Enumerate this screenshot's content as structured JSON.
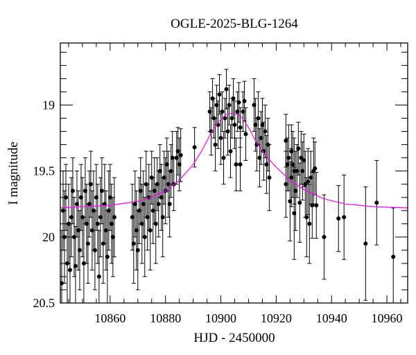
{
  "chart_data": {
    "type": "scatter",
    "title": "OGLE-2025-BLG-1264",
    "xlabel": "HJD - 2450000",
    "ylabel": "I magnitude",
    "xlim": [
      10842,
      10967.5
    ],
    "ylim": [
      20.5,
      18.53
    ],
    "y_inverted": true,
    "xticks": [
      10860,
      10880,
      10900,
      10920,
      10940,
      10960
    ],
    "xtick_labels": [
      "10860",
      "10880",
      "10900",
      "10920",
      "10940",
      "10960"
    ],
    "yticks": [
      19,
      19.5,
      20,
      20.5
    ],
    "ytick_labels": [
      "19",
      "19.5",
      "20",
      "20.5"
    ],
    "x_minor_step": 5,
    "y_minor_step": 0.1,
    "grid": false,
    "colors": {
      "points": "#000000",
      "model": "#ff00ff"
    },
    "points_columns": [
      "hjd",
      "mag",
      "err"
    ],
    "points": [
      [
        10842.5,
        20.35,
        0.4
      ],
      [
        10843,
        19.8,
        0.3
      ],
      [
        10843.5,
        20.0,
        0.35
      ],
      [
        10844,
        19.7,
        0.25
      ],
      [
        10844.5,
        20.2,
        0.3
      ],
      [
        10845,
        19.9,
        0.3
      ],
      [
        10845.5,
        20.25,
        0.35
      ],
      [
        10846,
        19.85,
        0.3
      ],
      [
        10846.5,
        19.65,
        0.25
      ],
      [
        10847,
        20.0,
        0.3
      ],
      [
        10847.5,
        20.22,
        0.3
      ],
      [
        10848,
        19.75,
        0.25
      ],
      [
        10848.5,
        19.95,
        0.3
      ],
      [
        10849,
        20.1,
        0.3
      ],
      [
        10849.5,
        19.7,
        0.25
      ],
      [
        10850,
        19.85,
        0.3
      ],
      [
        10850.5,
        20.2,
        0.35
      ],
      [
        10851,
        19.65,
        0.25
      ],
      [
        10851.5,
        19.9,
        0.3
      ],
      [
        10852,
        20.05,
        0.3
      ],
      [
        10852.5,
        19.75,
        0.25
      ],
      [
        10853,
        19.6,
        0.25
      ],
      [
        10853.5,
        19.95,
        0.3
      ],
      [
        10854,
        19.8,
        0.3
      ],
      [
        10854.5,
        20.1,
        0.3
      ],
      [
        10855,
        19.7,
        0.25
      ],
      [
        10855.5,
        19.9,
        0.3
      ],
      [
        10856,
        20.3,
        0.35
      ],
      [
        10856.5,
        19.85,
        0.3
      ],
      [
        10857,
        19.65,
        0.25
      ],
      [
        10857.5,
        20.05,
        0.3
      ],
      [
        10858,
        19.75,
        0.3
      ],
      [
        10858.5,
        19.95,
        0.3
      ],
      [
        10859,
        20.15,
        0.35
      ],
      [
        10859.5,
        19.8,
        0.3
      ],
      [
        10860,
        19.7,
        0.25
      ],
      [
        10860.5,
        19.9,
        0.3
      ],
      [
        10861,
        20.0,
        0.3
      ],
      [
        10861.5,
        19.85,
        0.3
      ],
      [
        10868,
        19.85,
        0.25
      ],
      [
        10868.5,
        20.05,
        0.3
      ],
      [
        10869,
        19.75,
        0.25
      ],
      [
        10869.5,
        19.95,
        0.3
      ],
      [
        10870,
        20.1,
        0.3
      ],
      [
        10870.5,
        19.8,
        0.25
      ],
      [
        10871,
        19.65,
        0.25
      ],
      [
        10871.5,
        19.9,
        0.3
      ],
      [
        10872,
        19.75,
        0.25
      ],
      [
        10872.5,
        20.0,
        0.3
      ],
      [
        10873,
        19.6,
        0.25
      ],
      [
        10873.5,
        19.85,
        0.25
      ],
      [
        10874,
        19.7,
        0.25
      ],
      [
        10874.5,
        19.95,
        0.3
      ],
      [
        10875,
        19.55,
        0.2
      ],
      [
        10875.5,
        19.8,
        0.25
      ],
      [
        10876,
        19.65,
        0.25
      ],
      [
        10876.5,
        19.9,
        0.3
      ],
      [
        10877,
        19.6,
        0.2
      ],
      [
        10877.5,
        19.75,
        0.25
      ],
      [
        10878,
        19.5,
        0.2
      ],
      [
        10878.5,
        19.7,
        0.25
      ],
      [
        10879,
        19.85,
        0.3
      ],
      [
        10879.5,
        19.55,
        0.2
      ],
      [
        10880,
        19.65,
        0.25
      ],
      [
        10880.5,
        19.45,
        0.2
      ],
      [
        10881,
        19.6,
        0.25
      ],
      [
        10881.5,
        19.75,
        0.25
      ],
      [
        10882,
        19.5,
        0.2
      ],
      [
        10882.5,
        19.4,
        0.2
      ],
      [
        10883,
        19.6,
        0.2
      ],
      [
        10884,
        19.4,
        0.2
      ],
      [
        10884.5,
        19.35,
        0.18
      ],
      [
        10885,
        19.45,
        0.2
      ],
      [
        10885.5,
        19.38,
        0.2
      ],
      [
        10890.5,
        19.32,
        0.15
      ],
      [
        10896,
        19.05,
        0.15
      ],
      [
        10896.5,
        19.2,
        0.18
      ],
      [
        10897,
        18.95,
        0.15
      ],
      [
        10897.5,
        19.1,
        0.15
      ],
      [
        10898,
        19.3,
        0.2
      ],
      [
        10898.5,
        19.0,
        0.15
      ],
      [
        10899,
        19.15,
        0.18
      ],
      [
        10899.5,
        18.92,
        0.15
      ],
      [
        10900,
        19.25,
        0.2
      ],
      [
        10900.5,
        19.05,
        0.15
      ],
      [
        10901,
        19.4,
        0.2
      ],
      [
        10901.5,
        19.1,
        0.15
      ],
      [
        10902,
        18.88,
        0.15
      ],
      [
        10902.5,
        19.2,
        0.18
      ],
      [
        10903,
        19.0,
        0.15
      ],
      [
        10903.5,
        19.35,
        0.2
      ],
      [
        10904,
        19.1,
        0.15
      ],
      [
        10904.5,
        18.95,
        0.15
      ],
      [
        10905,
        19.15,
        0.18
      ],
      [
        10905.5,
        19.45,
        0.2
      ],
      [
        10906,
        19.05,
        0.15
      ],
      [
        10906.5,
        18.98,
        0.15
      ],
      [
        10907,
        19.45,
        0.2
      ],
      [
        10907,
        19.17,
        0.15
      ],
      [
        10908,
        19.05,
        0.15
      ],
      [
        10908.5,
        18.97,
        0.15
      ],
      [
        10909,
        19.22,
        0.2
      ],
      [
        10912,
        19.0,
        0.2
      ],
      [
        10912.5,
        19.15,
        0.2
      ],
      [
        10913,
        19.3,
        0.2
      ],
      [
        10913.5,
        19.1,
        0.2
      ],
      [
        10914,
        19.4,
        0.22
      ],
      [
        10914.5,
        19.25,
        0.2
      ],
      [
        10915,
        19.15,
        0.2
      ],
      [
        10915.5,
        19.35,
        0.22
      ],
      [
        10916,
        19.2,
        0.2
      ],
      [
        10916.5,
        19.45,
        0.22
      ],
      [
        10917,
        19.3,
        0.2
      ],
      [
        10917.5,
        19.55,
        0.25
      ],
      [
        10923.5,
        19.27,
        0.2
      ],
      [
        10923.5,
        19.6,
        0.25
      ],
      [
        10924,
        19.45,
        0.2
      ],
      [
        10924.5,
        19.4,
        0.25
      ],
      [
        10925,
        19.73,
        0.3
      ],
      [
        10925.5,
        19.35,
        0.2
      ],
      [
        10925.5,
        19.55,
        0.22
      ],
      [
        10926,
        19.45,
        0.25
      ],
      [
        10926.5,
        19.82,
        0.35
      ],
      [
        10926.5,
        19.5,
        0.25
      ],
      [
        10927,
        19.65,
        0.3
      ],
      [
        10927.5,
        19.5,
        0.2
      ],
      [
        10928,
        19.33,
        0.2
      ],
      [
        10928.5,
        19.74,
        0.3
      ],
      [
        10929,
        19.4,
        0.2
      ],
      [
        10929.5,
        19.5,
        0.22
      ],
      [
        10930,
        19.42,
        0.2
      ],
      [
        10930.5,
        19.6,
        0.25
      ],
      [
        10931,
        19.85,
        0.3
      ],
      [
        10931.5,
        19.58,
        0.25
      ],
      [
        10932,
        19.9,
        0.3
      ],
      [
        10932.5,
        19.55,
        0.2
      ],
      [
        10933,
        19.76,
        0.25
      ],
      [
        10933.5,
        19.5,
        0.25
      ],
      [
        10934,
        19.48,
        0.2
      ],
      [
        10934.5,
        19.76,
        0.25
      ],
      [
        10937.3,
        20.0,
        0.32
      ],
      [
        10942.5,
        19.86,
        0.25
      ],
      [
        10944.5,
        19.85,
        0.32
      ],
      [
        10952.3,
        20.05,
        0.43
      ],
      [
        10956.3,
        19.74,
        0.32
      ],
      [
        10962.3,
        20.15,
        0.37
      ]
    ],
    "model_curve": [
      [
        10842,
        19.78
      ],
      [
        10850,
        19.77
      ],
      [
        10860,
        19.76
      ],
      [
        10870,
        19.73
      ],
      [
        10875,
        19.7
      ],
      [
        10880,
        19.65
      ],
      [
        10885,
        19.57
      ],
      [
        10890,
        19.45
      ],
      [
        10893,
        19.35
      ],
      [
        10896,
        19.23
      ],
      [
        10899,
        19.13
      ],
      [
        10902,
        19.07
      ],
      [
        10904.5,
        19.06
      ],
      [
        10907,
        19.08
      ],
      [
        10910,
        19.17
      ],
      [
        10913,
        19.29
      ],
      [
        10916,
        19.38
      ],
      [
        10920,
        19.47
      ],
      [
        10925,
        19.57
      ],
      [
        10930,
        19.64
      ],
      [
        10937,
        19.71
      ],
      [
        10945,
        19.75
      ],
      [
        10955,
        19.77
      ],
      [
        10967.5,
        19.78
      ]
    ]
  }
}
